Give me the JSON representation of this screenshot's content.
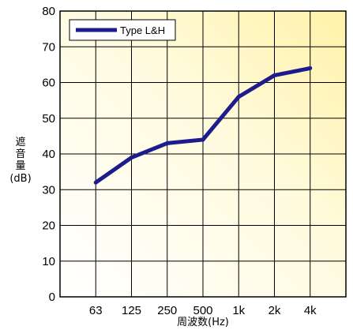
{
  "chart_data": {
    "type": "line",
    "categories": [
      "63",
      "125",
      "250",
      "500",
      "1k",
      "2k",
      "4k"
    ],
    "series": [
      {
        "name": "Type L&H",
        "values": [
          32,
          39,
          43,
          44,
          56,
          62,
          64
        ]
      }
    ],
    "ylim": [
      0,
      80
    ],
    "yticks": [
      0,
      10,
      20,
      30,
      40,
      50,
      60,
      70,
      80
    ],
    "ylabel_lines": [
      "遮",
      "音",
      "量",
      "(dB)"
    ],
    "xlabel": "周波数(Hz)",
    "grid": true,
    "legend_position": "top-left",
    "colors": {
      "line": "#1c1c8c",
      "background_start": "#fffce8",
      "background_end": "#fff2a8"
    }
  }
}
